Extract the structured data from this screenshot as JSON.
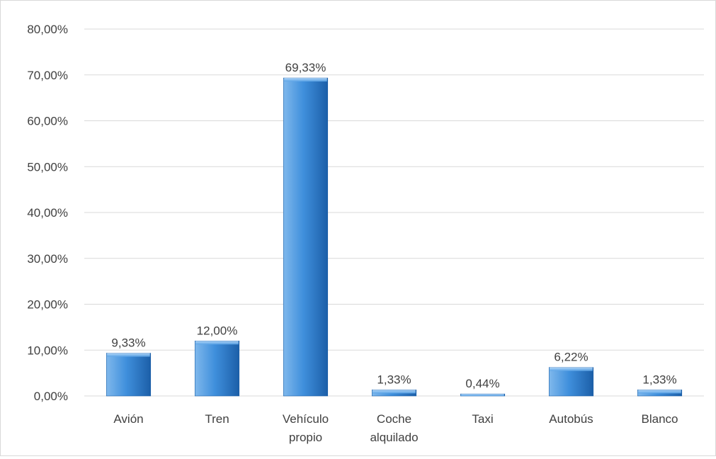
{
  "chart_data": {
    "type": "bar",
    "categories": [
      [
        "Avión"
      ],
      [
        "Tren"
      ],
      [
        "Vehículo",
        "propio"
      ],
      [
        "Coche",
        "alquilado"
      ],
      [
        "Taxi"
      ],
      [
        "Autobús"
      ],
      [
        "Blanco"
      ]
    ],
    "values": [
      9.33,
      12.0,
      69.33,
      1.33,
      0.44,
      6.22,
      1.33
    ],
    "data_labels": [
      "9,33%",
      "12,00%",
      "69,33%",
      "1,33%",
      "0,44%",
      "6,22%",
      "1,33%"
    ],
    "y_ticks": [
      0,
      10,
      20,
      30,
      40,
      50,
      60,
      70,
      80
    ],
    "y_tick_labels": [
      "0,00%",
      "10,00%",
      "20,00%",
      "30,00%",
      "40,00%",
      "50,00%",
      "60,00%",
      "70,00%",
      "80,00%"
    ],
    "ylim": [
      0,
      80
    ],
    "title": "",
    "xlabel": "",
    "ylabel": "",
    "grid": true,
    "legend": "none",
    "colors": {
      "bar_light": "#7fb8ec",
      "bar_mid": "#3f8fdc",
      "bar_dark": "#1c5fa8",
      "gridline": "#d9d9d9",
      "text": "#404040"
    }
  }
}
